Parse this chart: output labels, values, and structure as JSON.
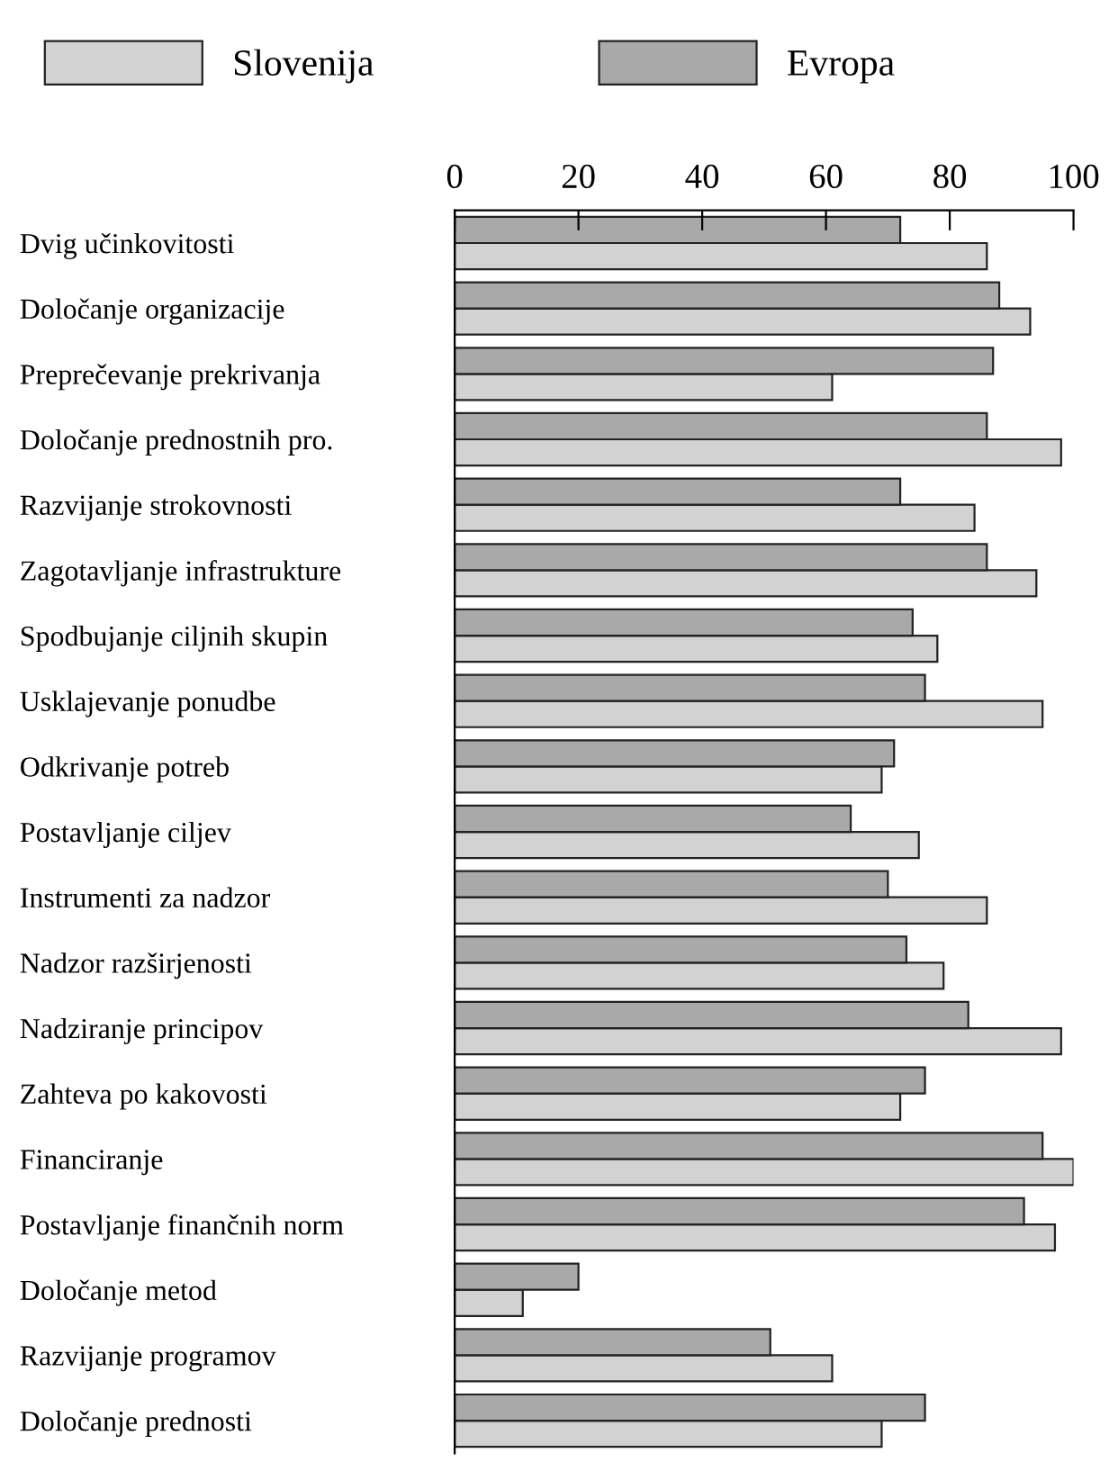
{
  "chart_data": {
    "type": "bar",
    "orientation": "horizontal",
    "legend": "top left",
    "grid": false,
    "categories": [
      "Dvig učinkovitosti",
      "Določanje organizacije",
      "Preprečevanje prekrivanja",
      "Določanje prednostnih pro.",
      "Razvijanje strokovnosti",
      "Zagotavljanje infrastrukture",
      "Spodbujanje ciljnih skupin",
      "Usklajevanje ponudbe",
      "Odkrivanje potreb",
      "Postavljanje ciljev",
      "Instrumenti za nadzor",
      "Nadzor razširjenosti",
      "Nadziranje principov",
      "Zahteva po kakovosti",
      "Financiranje",
      "Postavljanje finančnih norm",
      "Določanje metod",
      "Razvijanje programov",
      "Določanje prednosti"
    ],
    "xlim": [
      0,
      100
    ],
    "xticks": [
      0,
      20,
      40,
      60,
      80,
      100
    ],
    "series": [
      {
        "name": "Slovenija",
        "color": "#d2d2d2",
        "values": [
          86,
          93,
          61,
          98,
          84,
          94,
          78,
          95,
          69,
          75,
          86,
          79,
          98,
          72,
          100,
          97,
          11,
          61,
          69
        ]
      },
      {
        "name": "Evropa",
        "color": "#a9a9a9",
        "values": [
          72,
          88,
          87,
          86,
          72,
          86,
          74,
          76,
          71,
          64,
          70,
          73,
          83,
          76,
          95,
          92,
          20,
          51,
          76
        ]
      }
    ]
  }
}
